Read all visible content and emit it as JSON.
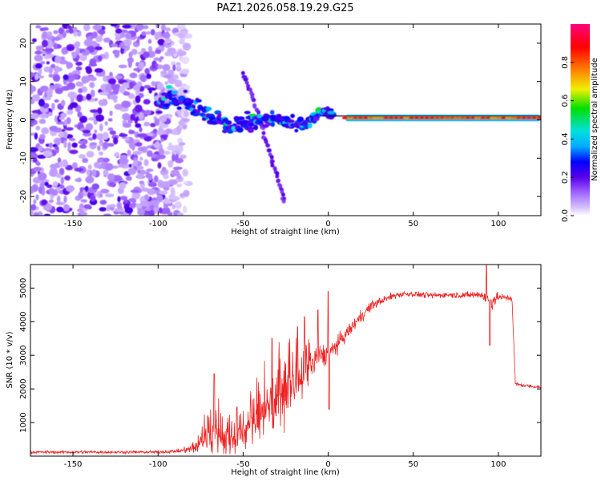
{
  "figure_title": "PAZ1.2026.058.19.29.G25",
  "chart_data": [
    {
      "type": "heatmap",
      "title": "PAZ1.2026.058.19.29.G25",
      "xlabel": "Height of straight line (km)",
      "ylabel": "Frequency (Hz)",
      "xlim": [
        -175,
        125
      ],
      "ylim": [
        -25,
        25
      ],
      "xticks": [
        -150,
        -100,
        -50,
        0,
        50,
        100
      ],
      "yticks": [
        -20,
        -10,
        0,
        10,
        20
      ],
      "features": [
        {
          "name": "scattered-noise",
          "x_range": [
            -175,
            -82
          ],
          "freq_range": [
            -25,
            25
          ],
          "amplitude": 0.2
        },
        {
          "name": "converging-signal",
          "points": [
            [
              -100,
              5
            ],
            [
              -90,
              5.5
            ],
            [
              -80,
              4
            ],
            [
              -70,
              2
            ],
            [
              -60,
              -1
            ],
            [
              -50,
              -1.5
            ],
            [
              -40,
              0
            ],
            [
              -30,
              0
            ],
            [
              -20,
              -1
            ],
            [
              -10,
              -0.5
            ],
            [
              -3,
              2.5
            ],
            [
              3,
              1
            ]
          ],
          "amplitude": 0.3
        },
        {
          "name": "diagonal-branch",
          "points": [
            [
              -50,
              12
            ],
            [
              -45,
              7
            ],
            [
              -40,
              0
            ],
            [
              -35,
              -8
            ],
            [
              -30,
              -15
            ],
            [
              -25,
              -22
            ]
          ],
          "amplitude": 0.15
        },
        {
          "name": "main-tone",
          "x_range": [
            10,
            125
          ],
          "freq": 0.5,
          "amplitude": 0.95
        }
      ],
      "colorbar": {
        "label": "Normalized spectral amplitude",
        "ticks": [
          "0.0",
          "0.2",
          "0.4",
          "0.6",
          "0.8"
        ],
        "colors": [
          "#ffffff",
          "#9f66ff",
          "#5a00e8",
          "#0000ff",
          "#00aaff",
          "#00e0e0",
          "#00e000",
          "#f0f000",
          "#ff8000",
          "#ff0000",
          "#ff0080"
        ]
      }
    },
    {
      "type": "line",
      "xlabel": "Height of straight line (km)",
      "ylabel": "SNR (10 * v/v)",
      "xlim": [
        -175,
        125
      ],
      "ylim": [
        0,
        5700
      ],
      "xticks": [
        -150,
        -100,
        -50,
        0,
        50,
        100
      ],
      "yticks": [
        1000,
        2000,
        3000,
        4000,
        5000
      ],
      "series": [
        {
          "name": "SNR",
          "color": "#ee2222",
          "envelope_x": [
            -175,
            -100,
            -88,
            -82,
            -75,
            -70,
            -65,
            -60,
            -55,
            -50,
            -45,
            -40,
            -35,
            -30,
            -25,
            -20,
            -15,
            -10,
            -5,
            0,
            5,
            10,
            15,
            20,
            25,
            30,
            35,
            40,
            45,
            50,
            60,
            70,
            80,
            90,
            95,
            100,
            108,
            110,
            115,
            125
          ],
          "envelope_y": [
            120,
            120,
            150,
            200,
            350,
            600,
            700,
            500,
            600,
            700,
            1000,
            1300,
            1500,
            1700,
            1900,
            2100,
            2400,
            2700,
            3000,
            3000,
            3300,
            3600,
            3900,
            4200,
            4450,
            4600,
            4700,
            4800,
            4830,
            4820,
            4780,
            4800,
            4790,
            4810,
            4600,
            4730,
            4700,
            2150,
            2100,
            2050
          ],
          "noise_amplitude": [
            60,
            60,
            80,
            150,
            500,
            700,
            800,
            600,
            700,
            800,
            900,
            1000,
            1100,
            1200,
            1100,
            1000,
            900,
            600,
            500,
            400,
            350,
            300,
            280,
            250,
            220,
            180,
            150,
            140,
            130,
            120,
            120,
            120,
            130,
            200,
            500,
            150,
            120,
            80,
            70,
            70
          ],
          "spikes": [
            [
              -67,
              2450
            ],
            [
              -33,
              3500
            ],
            [
              -18,
              3850
            ],
            [
              -14,
              4150
            ],
            [
              -6,
              4350
            ],
            [
              0,
              4900
            ],
            [
              0.5,
              1400
            ],
            [
              93,
              5700
            ],
            [
              95,
              3300
            ]
          ]
        }
      ]
    }
  ]
}
